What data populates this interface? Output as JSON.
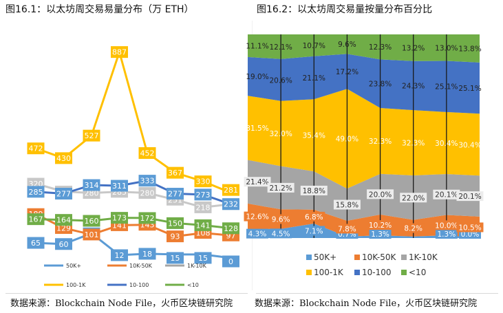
{
  "titles": {
    "left": "图16.1：以太坊周交易易量分布（万 ETH）",
    "right": "图16.2：以太坊周交易量按量分布百分比"
  },
  "sources": {
    "left": "数据来源：Blockchain Node File，火币区块链研究院",
    "right": "数据来源：Blockchain Node File，火币区块链研究院"
  },
  "chart_data": [
    {
      "type": "line",
      "title": "以太坊周交易量分布（万 ETH）",
      "x": [
        1,
        2,
        3,
        4,
        5,
        6,
        7,
        8
      ],
      "ylim": [
        0,
        900
      ],
      "series": [
        {
          "name": "50K+",
          "color": "#5b9bd5",
          "values": [
            65,
            60,
            106,
            12,
            18,
            15,
            15,
            0
          ]
        },
        {
          "name": "10K-50K",
          "color": "#ed7d31",
          "values": [
            189,
            129,
            101,
            141,
            143,
            93,
            108,
            97
          ]
        },
        {
          "name": "1K-10K",
          "color": "#a5a5a5",
          "values": [
            320,
            286,
            280,
            285,
            280,
            251,
            218,
            232
          ]
        },
        {
          "name": "100-1K",
          "color": "#ffc000",
          "values": [
            472,
            430,
            527,
            887,
            452,
            367,
            330,
            281
          ]
        },
        {
          "name": "10-100",
          "color": "#4472c4",
          "values": [
            285,
            277,
            314,
            311,
            333,
            277,
            273,
            232
          ]
        },
        {
          "name": "<10",
          "color": "#70ad47",
          "values": [
            167,
            164,
            160,
            173,
            172,
            150,
            141,
            128
          ]
        }
      ],
      "legend": [
        {
          "label": "50K+",
          "color": "#5b9bd5"
        },
        {
          "label": "10K-50K",
          "color": "#ed7d31"
        },
        {
          "label": "1K-10K",
          "color": "#a5a5a5"
        },
        {
          "label": "100-1K",
          "color": "#ffc000"
        },
        {
          "label": "10-100",
          "color": "#4472c4"
        },
        {
          "label": "<10",
          "color": "#70ad47"
        }
      ]
    },
    {
      "type": "area",
      "stacked": "percent",
      "title": "以太坊周交易量按量分布百分比",
      "x": [
        1,
        2,
        3,
        4,
        5,
        6,
        7,
        8
      ],
      "ylim": [
        0,
        100
      ],
      "series": [
        {
          "name": "50K+",
          "color": "#5b9bd5",
          "values": [
            4.3,
            4.5,
            7.1,
            0.7,
            1.3,
            0.8,
            1.3,
            0.0
          ],
          "labels": [
            "4.3%",
            "4.5%",
            "7.1%",
            "0.7%",
            "1.3%",
            "",
            "1.3%",
            "0.0%"
          ]
        },
        {
          "name": "10K-50K",
          "color": "#ed7d31",
          "values": [
            12.6,
            9.6,
            6.8,
            7.8,
            10.2,
            8.2,
            10.0,
            10.5
          ],
          "labels": [
            "12.6%",
            "9.6%",
            "6.8%",
            "7.8%",
            "10.2%",
            "8.2%",
            "10.0%",
            "10.5%"
          ]
        },
        {
          "name": "1K-10K",
          "color": "#a5a5a5",
          "values": [
            21.4,
            21.2,
            18.8,
            15.8,
            20.0,
            22.0,
            20.1,
            20.1
          ],
          "labels": [
            "21.4%",
            "21.2%",
            "18.8%",
            "15.8%",
            "20.0%",
            "22.0%",
            "20.1%",
            "20.1%"
          ]
        },
        {
          "name": "100-1K",
          "color": "#ffc000",
          "values": [
            31.5,
            32.0,
            35.4,
            49.0,
            32.3,
            32.3,
            30.4,
            30.4
          ],
          "labels": [
            "31.5%",
            "32.0%",
            "35.4%",
            "49.0%",
            "32.3%",
            "32.3%",
            "30.4%",
            "30.4%"
          ]
        },
        {
          "name": "10-100",
          "color": "#4472c4",
          "values": [
            19.0,
            20.6,
            21.1,
            17.2,
            23.8,
            24.3,
            25.1,
            25.1
          ],
          "labels": [
            "19.0%",
            "20.6%",
            "21.1%",
            "17.2%",
            "23.8%",
            "24.3%",
            "25.1%",
            "25.1%"
          ]
        },
        {
          "name": "<10",
          "color": "#70ad47",
          "values": [
            11.1,
            12.1,
            10.7,
            9.6,
            12.3,
            13.2,
            13.0,
            13.8
          ],
          "labels": [
            "11.1%",
            "12.1%",
            "10.7%",
            "9.6%",
            "12.3%",
            "13.2%",
            "13.0%",
            "13.8%"
          ]
        }
      ],
      "legend": [
        {
          "label": "50K+",
          "color": "#5b9bd5"
        },
        {
          "label": "10K-50K",
          "color": "#ed7d31"
        },
        {
          "label": "1K-10K",
          "color": "#a5a5a5"
        },
        {
          "label": "100-1K",
          "color": "#ffc000"
        },
        {
          "label": "10-100",
          "color": "#4472c4"
        },
        {
          "label": "<10",
          "color": "#70ad47"
        }
      ]
    }
  ]
}
